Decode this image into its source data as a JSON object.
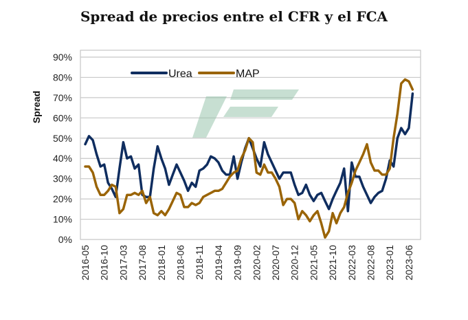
{
  "chart_data": {
    "type": "line",
    "title": "Spread de precios entre el CFR y el FCA",
    "ylabel": "Spread",
    "xlabel": "",
    "ylim": [
      0,
      90
    ],
    "yticks": [
      "0%",
      "10%",
      "20%",
      "30%",
      "40%",
      "50%",
      "60%",
      "70%",
      "80%",
      "90%"
    ],
    "start_month": "2016-05",
    "xtick_labels": [
      "2016-05",
      "2016-10",
      "2017-03",
      "2017-08",
      "2018-01",
      "2018-06",
      "2018-11",
      "2019-04",
      "2019-09",
      "2020-02",
      "2020-07",
      "2020-12",
      "2021-05",
      "2021-10",
      "2022-03",
      "2022-08",
      "2023-01",
      "2023-06"
    ],
    "grid": true,
    "legend": "top-center",
    "series": [
      {
        "name": "Urea",
        "color": "#0f2d5f",
        "values": [
          47,
          51,
          49,
          42,
          36,
          37,
          28,
          25,
          21,
          35,
          48,
          40,
          41,
          35,
          37,
          22,
          21,
          21,
          35,
          46,
          40,
          35,
          27,
          32,
          37,
          33,
          29,
          24,
          28,
          26,
          34,
          35,
          37,
          41,
          40,
          38,
          34,
          32,
          32,
          41,
          30,
          38,
          45,
          50,
          45,
          40,
          36,
          48,
          42,
          38,
          34,
          30,
          33,
          33,
          33,
          27,
          22,
          23,
          27,
          22,
          19,
          22,
          23,
          19,
          15,
          20,
          24,
          28,
          35,
          14,
          38,
          31,
          31,
          26,
          22,
          18,
          21,
          23,
          24,
          30,
          39,
          36,
          50,
          55,
          52,
          55,
          72
        ]
      },
      {
        "name": "MAP",
        "color": "#9a6406",
        "values": [
          36,
          36,
          33,
          26,
          22,
          22,
          24,
          27,
          26,
          13,
          15,
          22,
          22,
          23,
          22,
          24,
          18,
          21,
          13,
          12,
          14,
          12,
          15,
          19,
          23,
          22,
          16,
          16,
          18,
          17,
          18,
          21,
          22,
          23,
          24,
          24,
          25,
          28,
          31,
          33,
          34,
          40,
          44,
          50,
          48,
          33,
          32,
          37,
          33,
          33,
          30,
          26,
          17,
          20,
          20,
          18,
          10,
          14,
          12,
          9,
          12,
          14,
          8,
          1,
          4,
          13,
          8,
          13,
          16,
          23,
          28,
          34,
          38,
          42,
          47,
          38,
          34,
          34,
          32,
          32,
          35,
          50,
          62,
          77,
          79,
          78,
          74
        ]
      }
    ]
  }
}
